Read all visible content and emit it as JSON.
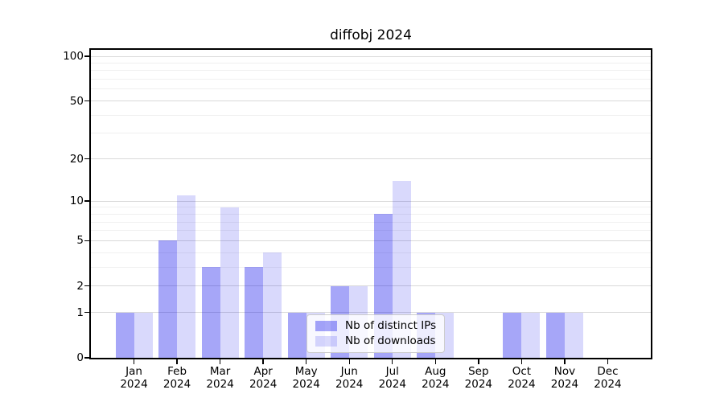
{
  "chart_data": {
    "type": "bar",
    "title": "diffobj 2024",
    "categories": [
      "Jan 2024",
      "Feb 2024",
      "Mar 2024",
      "Apr 2024",
      "May 2024",
      "Jun 2024",
      "Jul 2024",
      "Aug 2024",
      "Sep 2024",
      "Oct 2024",
      "Nov 2024",
      "Dec 2024"
    ],
    "month_labels": [
      "Jan",
      "Feb",
      "Mar",
      "Apr",
      "May",
      "Jun",
      "Jul",
      "Aug",
      "Sep",
      "Oct",
      "Nov",
      "Dec"
    ],
    "year_label": "2024",
    "series": [
      {
        "name": "Nb of distinct IPs",
        "color": "#0000EB59",
        "values": [
          1,
          5,
          3,
          3,
          1,
          2,
          8,
          1,
          0,
          1,
          1,
          0
        ]
      },
      {
        "name": "Nb of downloads",
        "color": "#0000EB26",
        "values": [
          1,
          11,
          9,
          4,
          1,
          2,
          14,
          1,
          0,
          1,
          1,
          0
        ]
      }
    ],
    "y_scale": "log10(1+x)",
    "ylim": [
      0,
      100
    ],
    "y_ticks": [
      0,
      1,
      2,
      5,
      10,
      20,
      50,
      100
    ],
    "y_minor_gridlines": [
      3,
      4,
      6,
      7,
      8,
      9,
      30,
      40,
      60,
      70,
      80,
      90
    ],
    "grid": true,
    "legend_position": "inside-bottom-center",
    "xlabel": "",
    "ylabel": ""
  },
  "colors": {
    "bar_distinct_ips": "#0000EB59",
    "bar_downloads": "#0000EB26",
    "grid_major": "#d9d9d9",
    "grid_minor": "#f0f0f0",
    "axis": "#000000",
    "text": "#000000",
    "legend_border": "#cccccc",
    "legend_background": "#ffffff"
  }
}
